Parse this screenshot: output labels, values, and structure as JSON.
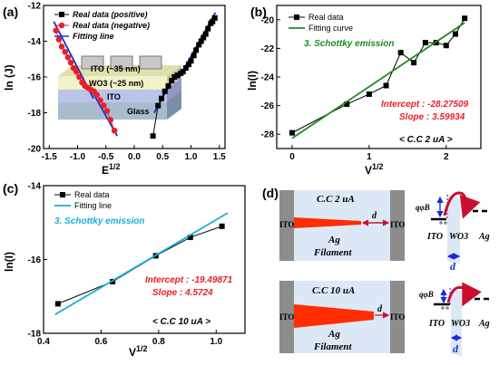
{
  "chart_data": [
    {
      "panel": "(a)",
      "type": "scatter",
      "xlabel": "E1/2",
      "ylabel": "ln (J)",
      "xlim": [
        -1.6,
        1.6
      ],
      "ylim": [
        -20,
        -12
      ],
      "x_ticks": [
        "-1.5",
        "-1.0",
        "-0.5",
        "0.0",
        "0.5",
        "1.0",
        "1.5"
      ],
      "y_ticks": [
        "-20",
        "-18",
        "-16",
        "-14",
        "-12"
      ],
      "legend": [
        "Real data (positive)",
        "Real data (negative)",
        "Fitting line"
      ],
      "series": [
        {
          "name": "Real data (positive)",
          "color": "#000000",
          "marker": "square",
          "x": [
            0.33,
            0.42,
            0.48,
            0.54,
            0.6,
            0.66,
            0.71,
            0.76,
            0.82,
            0.86,
            0.91,
            0.96,
            1.0,
            1.05,
            1.09,
            1.14,
            1.18,
            1.22,
            1.26,
            1.3,
            1.35,
            1.38,
            1.42
          ],
          "y": [
            -19.3,
            -17.6,
            -17.2,
            -16.8,
            -16.5,
            -16.2,
            -16.0,
            -15.9,
            -15.8,
            -15.7,
            -15.5,
            -15.3,
            -15.1,
            -14.8,
            -14.5,
            -14.2,
            -14.0,
            -13.8,
            -13.6,
            -13.3,
            -13.0,
            -12.9,
            -12.7
          ]
        },
        {
          "name": "Real data (negative)",
          "color": "#e8202a",
          "marker": "circle",
          "x": [
            -1.38,
            -1.33,
            -1.28,
            -1.22,
            -1.17,
            -1.12,
            -1.07,
            -1.02,
            -0.97,
            -0.92,
            -0.87,
            -0.82,
            -0.77,
            -0.71,
            -0.66,
            -0.6,
            -0.54,
            -0.48,
            -0.42,
            -0.35
          ],
          "y": [
            -13.4,
            -13.9,
            -14.3,
            -14.6,
            -14.9,
            -15.2,
            -15.5,
            -15.7,
            -16.0,
            -16.3,
            -16.5,
            -16.6,
            -16.7,
            -16.8,
            -17.0,
            -17.3,
            -17.6,
            -17.9,
            -18.4,
            -19.0
          ]
        }
      ],
      "fit_lines": [
        {
          "name": "Fitting line",
          "color": "#1a2bd6",
          "x": [
            -1.42,
            -0.72
          ],
          "y": [
            -12.9,
            -17.2
          ]
        },
        {
          "name": "Fitting line",
          "color": "#1a2bd6",
          "x": [
            -0.78,
            -0.3
          ],
          "y": [
            -16.6,
            -19.3
          ]
        },
        {
          "name": "Fitting line",
          "color": "#1a2bd6",
          "x": [
            0.35,
            0.72
          ],
          "y": [
            -18.0,
            -15.9
          ]
        },
        {
          "name": "Fitting line",
          "color": "#1a2bd6",
          "x": [
            0.78,
            1.43
          ],
          "y": [
            -16.1,
            -12.4
          ]
        }
      ],
      "inset": {
        "layers": [
          "ITO (~35 nm)",
          "WO3 (~25 nm)",
          "ITO",
          "Glass"
        ]
      }
    },
    {
      "panel": "(b)",
      "type": "line",
      "xlabel": "V1/2",
      "ylabel": "ln(I)",
      "xlim": [
        -0.2,
        2.45
      ],
      "ylim": [
        -29,
        -19
      ],
      "x_ticks": [
        "0",
        "1",
        "2"
      ],
      "y_ticks": [
        "-28",
        "-26",
        "-24",
        "-22",
        "-20"
      ],
      "legend": [
        "Real data",
        "Fitting curve"
      ],
      "annotation": "3. Schottky emission",
      "intercept_text": "Intercept : -28.27509",
      "slope_text": "Slope     : 3.59934",
      "condition": "< C.C 2 uA >",
      "series": [
        {
          "name": "Real data",
          "color": "#000000",
          "marker": "square",
          "x": [
            0.0,
            0.71,
            1.0,
            1.22,
            1.41,
            1.58,
            1.73,
            1.87,
            2.0,
            2.12,
            2.24
          ],
          "y": [
            -27.9,
            -25.9,
            -25.2,
            -24.6,
            -22.3,
            -23.0,
            -21.6,
            -21.6,
            -21.8,
            -21.0,
            -19.9
          ]
        },
        {
          "name": "Fitting curve",
          "color": "#1f8a1f",
          "x": [
            0.0,
            2.24
          ],
          "y": [
            -28.28,
            -20.21
          ]
        }
      ]
    },
    {
      "panel": "(c)",
      "type": "line",
      "xlabel": "V1/2",
      "ylabel": "ln(I)",
      "xlim": [
        0.4,
        1.1
      ],
      "ylim": [
        -18,
        -14
      ],
      "x_ticks": [
        "0.4",
        "0.6",
        "0.8",
        "1.0"
      ],
      "y_ticks": [
        "-18",
        "-16",
        "-14"
      ],
      "legend": [
        "Real data",
        "Fitting line"
      ],
      "annotation": "3. Schottky emission",
      "intercept_text": "Intercept : -19.49871",
      "slope_text": "Slope     :   4.5724",
      "condition": "< C.C 10 uA >",
      "series": [
        {
          "name": "Real data",
          "color": "#000000",
          "marker": "square",
          "x": [
            0.45,
            0.64,
            0.79,
            0.91,
            1.02
          ],
          "y": [
            -17.2,
            -16.6,
            -15.9,
            -15.4,
            -15.1
          ]
        },
        {
          "name": "Fitting line",
          "color": "#17b0d8",
          "x": [
            0.44,
            1.04
          ],
          "y": [
            -17.49,
            -14.74
          ]
        }
      ]
    }
  ],
  "diagram_d": {
    "panel": "(d)",
    "top": {
      "cc": "C.C 2 uA",
      "ito_left": "ITO",
      "ito_right": "ITO",
      "d": "d",
      "ag": "Ag",
      "filament": "Filament"
    },
    "bottom": {
      "cc": "C.C 10 uA",
      "ito_left": "ITO",
      "ito_right": "ITO",
      "d": "d",
      "ag": "Ag",
      "filament": "Filament"
    },
    "band_top": {
      "phi": "qφB",
      "ito": "ITO",
      "wo3": "WO3",
      "ag": "Ag",
      "d": "d"
    },
    "band_bottom": {
      "phi": "qφB",
      "ito": "ITO",
      "wo3": "WO3",
      "ag": "Ag",
      "d": "d"
    }
  }
}
